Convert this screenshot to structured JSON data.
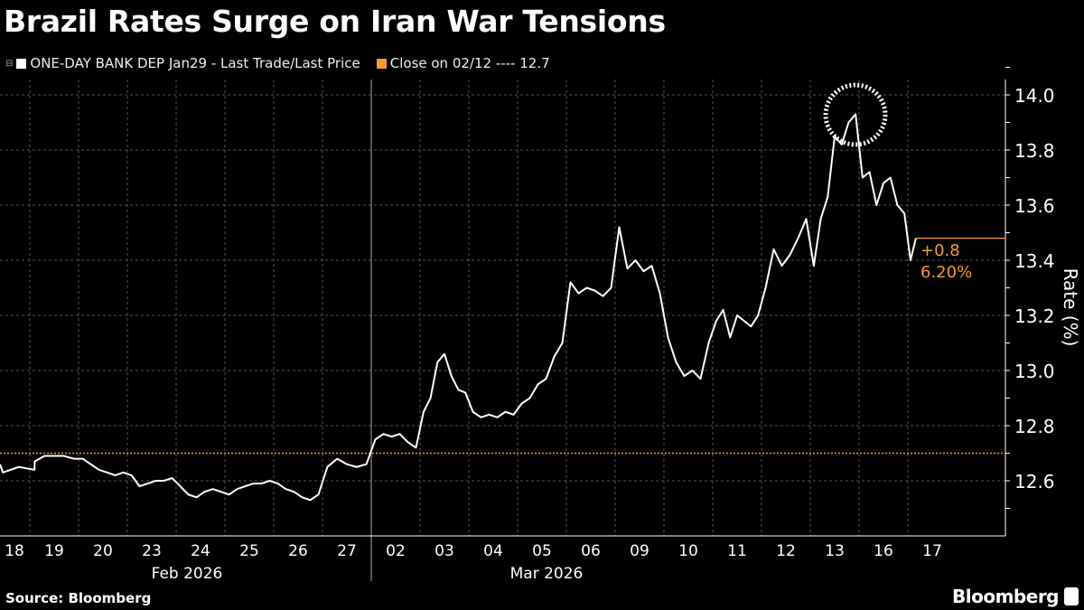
{
  "title": "Brazil Rates Surge on Iran War Tensions",
  "legend": [
    {
      "label": "ONE-DAY BANK DEP  Jan29 - Last Trade/Last Price",
      "color": "#ffffff"
    },
    {
      "label": "Close on 02/12 ---- 12.7",
      "color": "#f39c2b"
    }
  ],
  "footer": {
    "source": "Source: Bloomberg",
    "brand": "Bloomberg"
  },
  "annotation": {
    "change": "+0.8",
    "percent": "6.20%",
    "color": "#f39c2b"
  },
  "chart_data": {
    "type": "line",
    "ylabel": "Rate (%)",
    "ylim": [
      12.45,
      14.1
    ],
    "yticks": [
      "12.6",
      "12.8",
      "13.0",
      "13.2",
      "13.4",
      "13.6",
      "13.8",
      "14.0"
    ],
    "yaxis_side": "right",
    "grid": true,
    "months": [
      {
        "label": "Feb 2026",
        "days": [
          "18",
          "19",
          "20",
          "23",
          "24",
          "25",
          "26",
          "27"
        ]
      },
      {
        "label": "Mar 2026",
        "days": [
          "02",
          "03",
          "04",
          "05",
          "06",
          "09",
          "10",
          "11",
          "12",
          "13",
          "16",
          "17"
        ]
      }
    ],
    "reference_line": {
      "value": 12.7,
      "style": "dotted",
      "color": "#f39c2b"
    },
    "highlight": "circle around peak on 13",
    "series": [
      {
        "color": "#ffffff",
        "days": [
          {
            "day": "18",
            "values": [
              12.66,
              12.63,
              12.65,
              12.64
            ]
          },
          {
            "day": "19",
            "values": [
              12.67,
              12.69,
              12.69,
              12.69,
              12.68
            ]
          },
          {
            "day": "20",
            "values": [
              12.68,
              12.66,
              12.64,
              12.63,
              12.62,
              12.63
            ]
          },
          {
            "day": "23",
            "values": [
              12.62,
              12.58,
              12.59,
              12.6,
              12.6,
              12.61
            ]
          },
          {
            "day": "24",
            "values": [
              12.58,
              12.55,
              12.54,
              12.56,
              12.57,
              12.56
            ]
          },
          {
            "day": "25",
            "values": [
              12.55,
              12.57,
              12.58,
              12.59,
              12.59,
              12.6
            ]
          },
          {
            "day": "26",
            "values": [
              12.59,
              12.57,
              12.56,
              12.54,
              12.53,
              12.55
            ]
          },
          {
            "day": "27",
            "values": [
              12.65,
              12.68,
              12.66,
              12.65,
              12.66
            ]
          },
          {
            "day": "02",
            "values": [
              12.75,
              12.77,
              12.76,
              12.77,
              12.74,
              12.72
            ]
          },
          {
            "day": "03",
            "values": [
              12.85,
              12.9,
              13.03,
              13.06,
              12.98,
              12.93,
              12.92
            ]
          },
          {
            "day": "04",
            "values": [
              12.85,
              12.83,
              12.84,
              12.83,
              12.85,
              12.84
            ]
          },
          {
            "day": "05",
            "values": [
              12.88,
              12.9,
              12.95,
              12.97,
              13.05,
              13.1
            ]
          },
          {
            "day": "06",
            "values": [
              13.32,
              13.28,
              13.3,
              13.29,
              13.27,
              13.3
            ]
          },
          {
            "day": "09",
            "values": [
              13.52,
              13.37,
              13.4,
              13.36,
              13.38,
              13.28
            ]
          },
          {
            "day": "10",
            "values": [
              13.12,
              13.03,
              12.98,
              13.0,
              12.97,
              13.1
            ]
          },
          {
            "day": "11",
            "values": [
              13.18,
              13.22,
              13.12,
              13.2,
              13.18,
              13.16,
              13.2
            ]
          },
          {
            "day": "12",
            "values": [
              13.3,
              13.44,
              13.38,
              13.42,
              13.48,
              13.55
            ]
          },
          {
            "day": "13",
            "values": [
              13.38,
              13.55,
              13.63,
              13.85,
              13.82,
              13.9,
              13.93
            ]
          },
          {
            "day": "16",
            "values": [
              13.7,
              13.72,
              13.6,
              13.68,
              13.7,
              13.6,
              13.57
            ]
          },
          {
            "day": "17",
            "values": [
              13.4,
              13.48
            ]
          }
        ],
        "last": 13.48
      }
    ]
  }
}
